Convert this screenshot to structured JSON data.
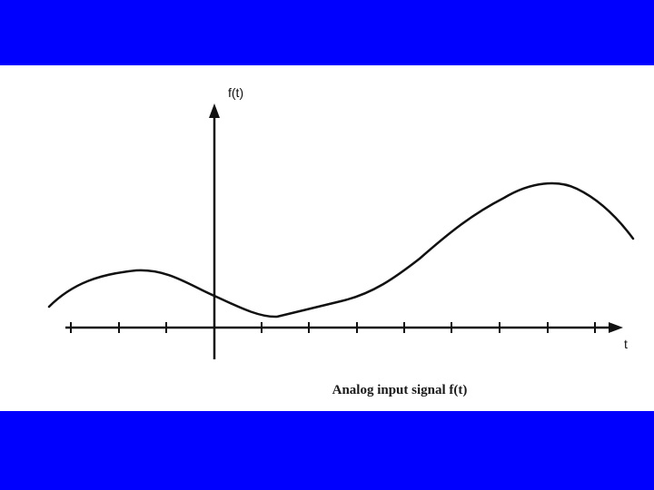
{
  "colors": {
    "band": "#0000ff",
    "ink": "#111111",
    "background": "#ffffff"
  },
  "figure": {
    "y_axis_label": "f(t)",
    "x_axis_label": "t",
    "caption": "Analog input signal f(t)"
  }
}
